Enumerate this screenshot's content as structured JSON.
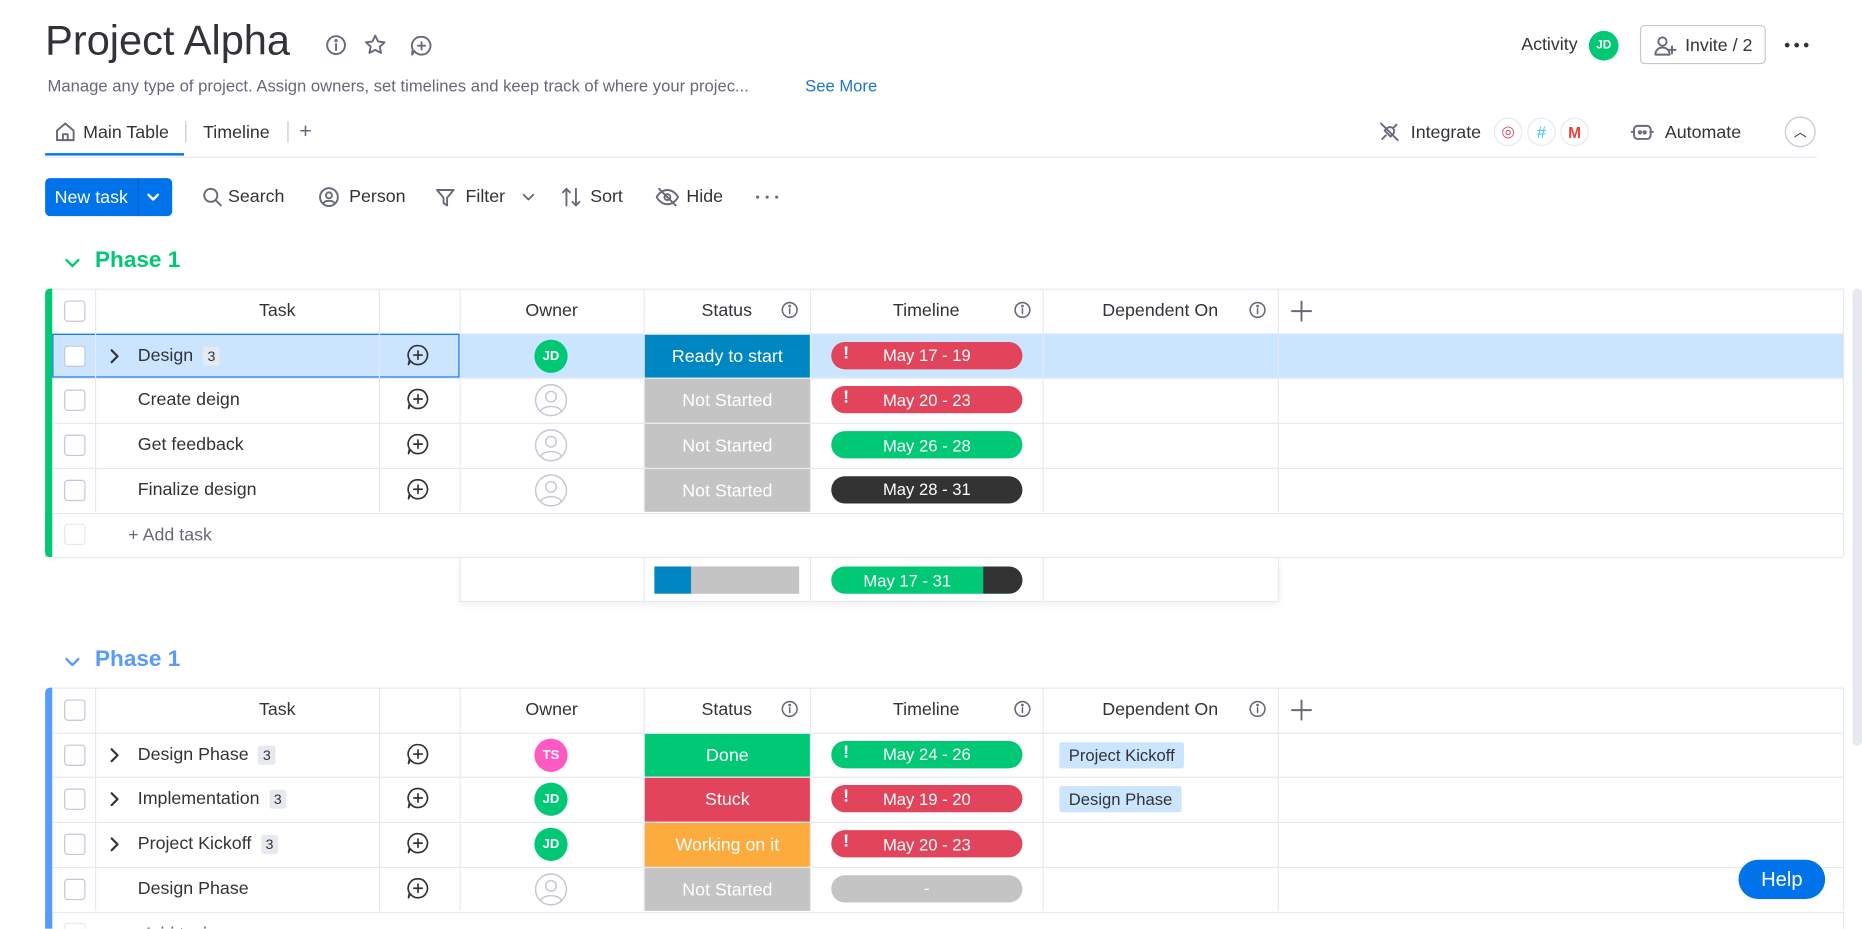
{
  "header": {
    "title": "Project Alpha",
    "description": "Manage any type of project. Assign owners, set timelines and keep track of where your projec...",
    "see_more": "See More",
    "activity": "Activity",
    "activity_avatar": "JD",
    "invite": "Invite / 2"
  },
  "tabs": [
    "Main Table",
    "Timeline"
  ],
  "integrate": "Integrate",
  "automate": "Automate",
  "toolbar": {
    "new_task": "New task",
    "buttons": [
      "Search",
      "Person",
      "Filter",
      "Sort",
      "Hide"
    ]
  },
  "groups": [
    {
      "title": "Phase 1",
      "color": "#00c875",
      "columns": [
        "Task",
        "Owner",
        "Status",
        "Timeline",
        "Dependent On"
      ],
      "rows": [
        {
          "task": "Design",
          "subitems": "3",
          "owner": "JD",
          "owner_color": "#00c875",
          "status": "Ready to start",
          "status_color": "#0086c0",
          "timeline": "May 17 - 19",
          "timeline_color": "#e2445c",
          "overdue": true,
          "selected": true
        },
        {
          "task": "Create deign",
          "status": "Not Started",
          "status_color": "#c4c4c4",
          "timeline": "May 20 - 23",
          "timeline_color": "#e2445c",
          "overdue": true
        },
        {
          "task": "Get feedback",
          "status": "Not Started",
          "status_color": "#c4c4c4",
          "timeline": "May 26 - 28",
          "timeline_color": "#00c875"
        },
        {
          "task": "Finalize design",
          "status": "Not Started",
          "status_color": "#c4c4c4",
          "timeline": "May 28 - 31",
          "timeline_color": "#333333"
        }
      ],
      "add_task": "+ Add task",
      "summary_timeline": "May 17 - 31"
    },
    {
      "title": "Phase 1",
      "color": "#579bfc",
      "columns": [
        "Task",
        "Owner",
        "Status",
        "Timeline",
        "Dependent On"
      ],
      "rows": [
        {
          "task": "Design Phase",
          "subitems": "3",
          "owner": "TS",
          "owner_color": "#ff5ac4",
          "status": "Done",
          "status_color": "#00c875",
          "timeline": "May 24 - 26",
          "timeline_color": "#00c875",
          "overdue": true,
          "dependent": "Project Kickoff"
        },
        {
          "task": "Implementation",
          "subitems": "3",
          "owner": "JD",
          "owner_color": "#00c875",
          "status": "Stuck",
          "status_color": "#e2445c",
          "timeline": "May 19 - 20",
          "timeline_color": "#e2445c",
          "overdue": true,
          "dependent": "Design Phase"
        },
        {
          "task": "Project Kickoff",
          "subitems": "3",
          "owner": "JD",
          "owner_color": "#00c875",
          "status": "Working on it",
          "status_color": "#fdab3d",
          "timeline": "May 20 - 23",
          "timeline_color": "#e2445c",
          "overdue": true
        },
        {
          "task": "Design Phase",
          "status": "Not Started",
          "status_color": "#c4c4c4",
          "timeline": "-",
          "timeline_color": "#c4c4c4"
        }
      ],
      "add_task": "+ Add task"
    }
  ],
  "help": "Help"
}
